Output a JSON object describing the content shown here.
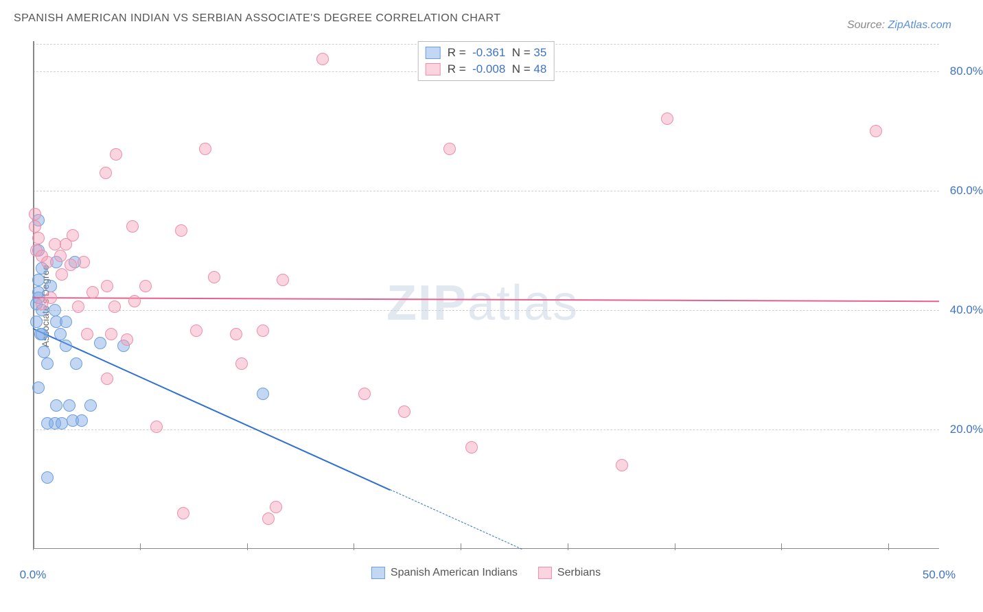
{
  "title": "SPANISH AMERICAN INDIAN VS SERBIAN ASSOCIATE'S DEGREE CORRELATION CHART",
  "title_fontsize": 16,
  "title_color": "#555555",
  "source_label": "Source:",
  "source_link_text": "ZipAtlas.com",
  "source_fontsize": 14,
  "ylabel": "Associate's Degree",
  "watermark": {
    "prefix": "ZIP",
    "suffix": "atlas"
  },
  "chart": {
    "type": "scatter",
    "xlim": [
      0,
      50
    ],
    "ylim": [
      0,
      85
    ],
    "ytick_labels": [
      {
        "value": 20,
        "text": "20.0%"
      },
      {
        "value": 40,
        "text": "40.0%"
      },
      {
        "value": 60,
        "text": "60.0%"
      },
      {
        "value": 80,
        "text": "80.0%"
      }
    ],
    "xtick_labels": [
      {
        "value": 0,
        "text": "0.0%"
      },
      {
        "value": 50,
        "text": "50.0%"
      }
    ],
    "xtick_positions": [
      0,
      5.9,
      11.8,
      17.7,
      23.6,
      29.5,
      35.4,
      41.3,
      47.2
    ],
    "grid_y": [
      20,
      40,
      60,
      80,
      84.5
    ],
    "grid_color": "#cfcfcf",
    "background_color": "#ffffff",
    "axis_color": "#888888",
    "marker_radius": 9,
    "marker_border_width": 1.5,
    "series": [
      {
        "name": "Spanish American Indians",
        "fill": "rgba(123,167,227,0.45)",
        "stroke": "#6b9fe0",
        "line_color": "#2f6fd1",
        "line_width": 2.5,
        "r": -0.361,
        "n": 35,
        "trend": {
          "x1": 0,
          "y1": 37,
          "x2": 19.7,
          "y2": 10,
          "style": "solid"
        },
        "trend_dash": {
          "x1": 19.7,
          "y1": 10,
          "x2": 27,
          "y2": 0,
          "style": "dashed"
        },
        "points": [
          [
            0.2,
            41
          ],
          [
            0.2,
            38
          ],
          [
            0.4,
            36
          ],
          [
            0.3,
            55
          ],
          [
            0.3,
            50
          ],
          [
            0.3,
            42
          ],
          [
            0.3,
            43
          ],
          [
            0.5,
            47
          ],
          [
            0.5,
            40
          ],
          [
            0.5,
            36
          ],
          [
            0.6,
            33
          ],
          [
            0.3,
            27
          ],
          [
            0.8,
            21
          ],
          [
            1.2,
            21
          ],
          [
            1.6,
            21
          ],
          [
            2.2,
            21.5
          ],
          [
            2.7,
            21.5
          ],
          [
            0.8,
            31
          ],
          [
            1.0,
            44
          ],
          [
            1.2,
            40
          ],
          [
            1.3,
            38
          ],
          [
            1.5,
            36
          ],
          [
            1.8,
            38
          ],
          [
            1.8,
            34
          ],
          [
            2.4,
            31
          ],
          [
            0.8,
            12
          ],
          [
            1.3,
            24
          ],
          [
            2.0,
            24
          ],
          [
            3.2,
            24
          ],
          [
            3.7,
            34.5
          ],
          [
            1.3,
            48
          ],
          [
            2.3,
            48
          ],
          [
            5.0,
            34
          ],
          [
            0.3,
            45
          ],
          [
            12.7,
            26
          ]
        ]
      },
      {
        "name": "Serbians",
        "fill": "rgba(244,160,185,0.45)",
        "stroke": "#ec8fab",
        "line_color": "#e85f8b",
        "line_width": 2.5,
        "r": -0.008,
        "n": 48,
        "trend": {
          "x1": 0,
          "y1": 42.2,
          "x2": 50,
          "y2": 41.6,
          "style": "solid"
        },
        "points": [
          [
            0.1,
            56
          ],
          [
            0.1,
            54
          ],
          [
            0.2,
            50
          ],
          [
            0.3,
            52
          ],
          [
            0.5,
            49
          ],
          [
            0.8,
            48
          ],
          [
            1.2,
            51
          ],
          [
            1.5,
            49
          ],
          [
            1.8,
            51
          ],
          [
            2.2,
            52.5
          ],
          [
            2.8,
            48
          ],
          [
            2.1,
            47.5
          ],
          [
            1.6,
            46
          ],
          [
            1.0,
            42
          ],
          [
            0.5,
            41
          ],
          [
            2.5,
            40.5
          ],
          [
            3.3,
            43
          ],
          [
            4.1,
            44
          ],
          [
            4.5,
            40.5
          ],
          [
            3.0,
            36
          ],
          [
            4.3,
            36
          ],
          [
            5.6,
            41.5
          ],
          [
            6.2,
            44
          ],
          [
            5.5,
            54
          ],
          [
            8.2,
            53.3
          ],
          [
            10.0,
            45.5
          ],
          [
            13.8,
            45
          ],
          [
            9.5,
            67
          ],
          [
            4.0,
            63
          ],
          [
            4.6,
            66
          ],
          [
            16.0,
            82
          ],
          [
            23.0,
            67
          ],
          [
            4.1,
            28.5
          ],
          [
            5.2,
            35
          ],
          [
            9.0,
            36.5
          ],
          [
            11.2,
            36
          ],
          [
            12.7,
            36.5
          ],
          [
            11.5,
            31
          ],
          [
            6.8,
            20.5
          ],
          [
            8.3,
            6
          ],
          [
            13.0,
            5
          ],
          [
            13.4,
            7
          ],
          [
            18.3,
            26
          ],
          [
            20.5,
            23
          ],
          [
            24.2,
            17
          ],
          [
            32.5,
            14
          ],
          [
            35.0,
            72
          ],
          [
            46.5,
            70
          ]
        ]
      }
    ],
    "legend_bottom": [
      {
        "label": "Spanish American Indians",
        "fill": "rgba(123,167,227,0.45)",
        "stroke": "#6b9fe0"
      },
      {
        "label": "Serbians",
        "fill": "rgba(244,160,185,0.45)",
        "stroke": "#ec8fab"
      }
    ]
  }
}
